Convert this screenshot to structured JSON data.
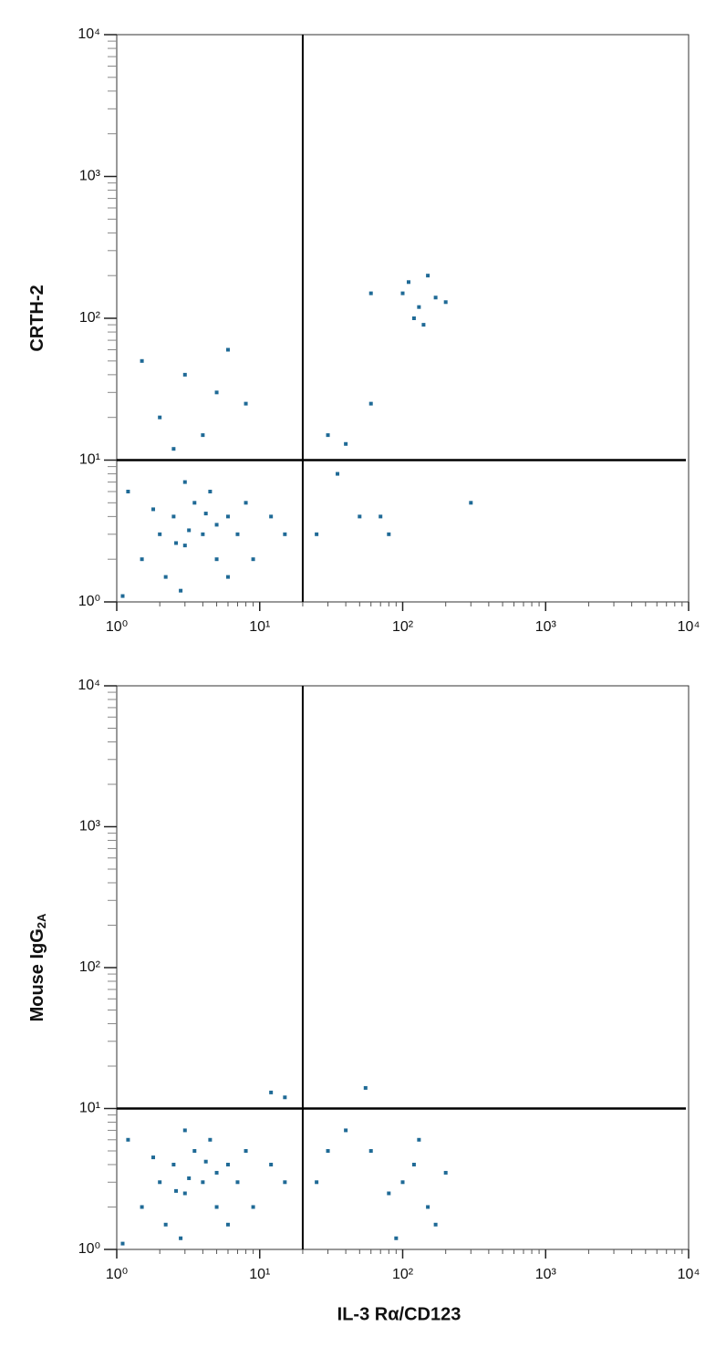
{
  "chart_data": [
    {
      "type": "scatter",
      "ylabel": "CRTH-2",
      "color": "#1f6a96",
      "log_x": true,
      "log_y": true,
      "xlim": [
        1,
        10000
      ],
      "ylim": [
        1,
        10000
      ],
      "xticks": [
        {
          "value": 1,
          "label": "10⁰"
        },
        {
          "value": 10,
          "label": "10¹"
        },
        {
          "value": 100,
          "label": "10²"
        },
        {
          "value": 1000,
          "label": "10³"
        },
        {
          "value": 10000,
          "label": "10⁴"
        }
      ],
      "yticks": [
        {
          "value": 1,
          "label": "10⁰"
        },
        {
          "value": 10,
          "label": "10¹"
        },
        {
          "value": 100,
          "label": "10²"
        },
        {
          "value": 1000,
          "label": "10³"
        },
        {
          "value": 10000,
          "label": "10⁴"
        }
      ],
      "xminorticks": [
        2,
        3,
        4,
        5,
        6,
        7,
        8,
        9,
        20,
        30,
        40,
        50,
        60,
        70,
        80,
        90,
        200,
        300,
        400,
        500,
        600,
        700,
        800,
        900,
        2000,
        3000,
        4000,
        5000,
        6000,
        7000,
        8000,
        9000
      ],
      "yminorticks": [
        2,
        3,
        4,
        5,
        6,
        7,
        8,
        9,
        20,
        30,
        40,
        50,
        60,
        70,
        80,
        90,
        200,
        300,
        400,
        500,
        600,
        700,
        800,
        900,
        2000,
        3000,
        4000,
        5000,
        6000,
        7000,
        8000,
        9000
      ],
      "quadrant_x": 20,
      "quadrant_y": 10,
      "x": [
        1.5,
        2,
        2.5,
        3,
        3.5,
        4,
        5,
        6,
        1.2,
        2.2,
        7,
        8,
        1.8,
        3,
        4.5,
        5,
        2.8,
        9,
        12,
        15,
        1.1,
        3.2,
        2.6,
        4.2,
        6,
        2,
        3,
        5,
        1.5,
        8,
        4,
        2.5,
        6,
        100,
        130,
        150,
        120,
        170,
        110,
        140,
        60,
        200,
        40,
        60,
        30,
        70,
        50,
        300,
        25,
        35,
        80
      ],
      "y": [
        2,
        3,
        4,
        2.5,
        5,
        3,
        2,
        4,
        6,
        1.5,
        3,
        5,
        4.5,
        7,
        6,
        3.5,
        1.2,
        2,
        4,
        3,
        1.1,
        3.2,
        2.6,
        4.2,
        1.5,
        20,
        40,
        30,
        50,
        25,
        15,
        12,
        60,
        150,
        120,
        200,
        100,
        140,
        180,
        90,
        150,
        130,
        13,
        25,
        15,
        4,
        4,
        5,
        3,
        8,
        3
      ]
    },
    {
      "type": "scatter",
      "ylabel": "Mouse IgG",
      "ylabel_sub": "2A",
      "xlabel": "IL-3 Rα/CD123",
      "color": "#1f6a96",
      "log_x": true,
      "log_y": true,
      "xlim": [
        1,
        10000
      ],
      "ylim": [
        1,
        10000
      ],
      "xticks": [
        {
          "value": 1,
          "label": "10⁰"
        },
        {
          "value": 10,
          "label": "10¹"
        },
        {
          "value": 100,
          "label": "10²"
        },
        {
          "value": 1000,
          "label": "10³"
        },
        {
          "value": 10000,
          "label": "10⁴"
        }
      ],
      "yticks": [
        {
          "value": 1,
          "label": "10⁰"
        },
        {
          "value": 10,
          "label": "10¹"
        },
        {
          "value": 100,
          "label": "10²"
        },
        {
          "value": 1000,
          "label": "10³"
        },
        {
          "value": 10000,
          "label": "10⁴"
        }
      ],
      "xminorticks": [
        2,
        3,
        4,
        5,
        6,
        7,
        8,
        9,
        20,
        30,
        40,
        50,
        60,
        70,
        80,
        90,
        200,
        300,
        400,
        500,
        600,
        700,
        800,
        900,
        2000,
        3000,
        4000,
        5000,
        6000,
        7000,
        8000,
        9000
      ],
      "yminorticks": [
        2,
        3,
        4,
        5,
        6,
        7,
        8,
        9,
        20,
        30,
        40,
        50,
        60,
        70,
        80,
        90,
        200,
        300,
        400,
        500,
        600,
        700,
        800,
        900,
        2000,
        3000,
        4000,
        5000,
        6000,
        7000,
        8000,
        9000
      ],
      "quadrant_x": 20,
      "quadrant_y": 10,
      "x": [
        1.5,
        2,
        2.5,
        3,
        3.5,
        4,
        5,
        6,
        1.2,
        2.2,
        7,
        8,
        1.8,
        3,
        4.5,
        5,
        2.8,
        9,
        12,
        15,
        1.1,
        3.2,
        2.6,
        4.2,
        6,
        100,
        150,
        120,
        80,
        200,
        60,
        170,
        130,
        90,
        40,
        25,
        30,
        12,
        15,
        55
      ],
      "y": [
        2,
        3,
        4,
        2.5,
        5,
        3,
        2,
        4,
        6,
        1.5,
        3,
        5,
        4.5,
        7,
        6,
        3.5,
        1.2,
        2,
        4,
        3,
        1.1,
        3.2,
        2.6,
        4.2,
        1.5,
        3,
        2,
        4,
        2.5,
        3.5,
        5,
        1.5,
        6,
        1.2,
        7,
        3,
        5,
        13,
        12,
        14
      ]
    }
  ]
}
